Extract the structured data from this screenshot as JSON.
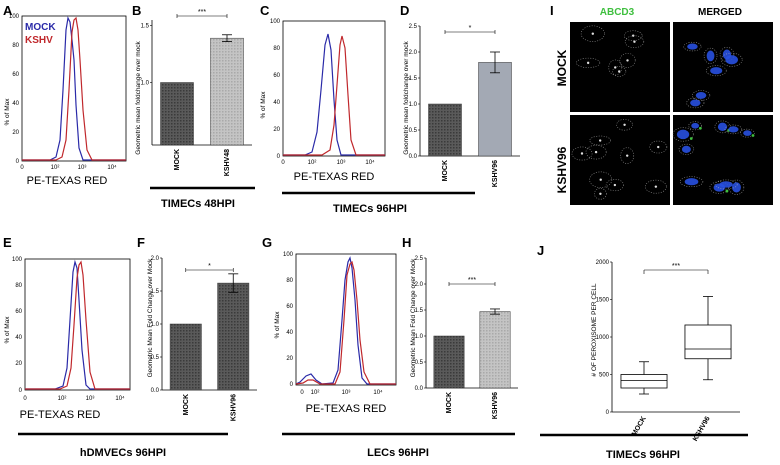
{
  "panels": [
    {
      "id": "A",
      "type": "histogram",
      "ylabel": "% of Max",
      "xlabel": "PE-TEXAS RED",
      "yticks": [
        "0",
        "20",
        "40",
        "60",
        "80",
        "100"
      ],
      "xticks": [
        "0",
        "10²",
        "10³",
        "10⁴"
      ],
      "legend": [
        {
          "name": "MOCK",
          "color": "#2a2aa8"
        },
        {
          "name": "KSHV",
          "color": "#c0282c"
        }
      ],
      "caption": ""
    },
    {
      "id": "B",
      "type": "bar",
      "ylabel": "Geometric mean foldchange over mock",
      "yticks": [
        "1.0",
        "1.5"
      ],
      "categories": [
        "MOCK",
        "KSHV48"
      ],
      "values": [
        1.0,
        1.39
      ],
      "errors": [
        0,
        0.03
      ],
      "ylim": [
        0.45,
        1.55
      ],
      "significance": "***",
      "caption": "TIMECs  48HPI"
    },
    {
      "id": "C",
      "type": "histogram",
      "ylabel": "% of Max",
      "xlabel": "PE-TEXAS RED",
      "yticks": [
        "0",
        "20",
        "40",
        "60",
        "80",
        "100"
      ],
      "xticks": [
        "0",
        "10²",
        "10³",
        "10⁴"
      ],
      "caption": ""
    },
    {
      "id": "D",
      "type": "bar",
      "ylabel": "Geometric mean foldchange over mock",
      "yticks": [
        "0.0",
        "0.5",
        "1.0",
        "1.5",
        "2.0",
        "2.5"
      ],
      "categories": [
        "MOCK",
        "KSHV96"
      ],
      "values": [
        1.0,
        1.8
      ],
      "errors": [
        0,
        0.2
      ],
      "ylim": [
        0,
        2.5
      ],
      "significance": "*",
      "caption": "TIMECs 96HPI"
    },
    {
      "id": "E",
      "type": "histogram",
      "ylabel": "% of Max",
      "xlabel": "PE-TEXAS RED",
      "yticks": [
        "0",
        "20",
        "40",
        "60",
        "80",
        "100"
      ],
      "xticks": [
        "0",
        "10²",
        "10³",
        "10⁴"
      ],
      "caption": ""
    },
    {
      "id": "F",
      "type": "bar",
      "ylabel": "Geometric Mean Fold Change over Mock",
      "yticks": [
        "0.0",
        "0.5",
        "1.0",
        "1.5",
        "2.0"
      ],
      "categories": [
        "MOCK",
        "KSHV96"
      ],
      "values": [
        1.0,
        1.62
      ],
      "errors": [
        0,
        0.14
      ],
      "ylim": [
        0,
        2.0
      ],
      "significance": "*",
      "caption": "hDMVECs 96HPI"
    },
    {
      "id": "G",
      "type": "histogram",
      "ylabel": "% of Max",
      "xlabel": "PE-TEXAS RED",
      "yticks": [
        "0",
        "20",
        "40",
        "60",
        "80",
        "100"
      ],
      "xticks": [
        "0",
        "10²",
        "10³",
        "10⁴"
      ],
      "caption": ""
    },
    {
      "id": "H",
      "type": "bar",
      "ylabel": "Geometric Mean Fold Change over Mock",
      "yticks": [
        "0.0",
        "0.5",
        "1.0",
        "1.5",
        "2.0",
        "2.5"
      ],
      "categories": [
        "MOCK",
        "KSHV96"
      ],
      "values": [
        1.0,
        1.47
      ],
      "errors": [
        0,
        0.05
      ],
      "ylim": [
        0,
        2.5
      ],
      "significance": "***",
      "caption": "LECs 96HPI"
    },
    {
      "id": "I",
      "type": "micrograph",
      "columns": [
        "ABCD3",
        "MERGED"
      ],
      "column_colors": [
        "#3fbf3f",
        "#000000"
      ],
      "rows": [
        "MOCK",
        "KSHV96"
      ]
    },
    {
      "id": "J",
      "type": "boxplot",
      "ylabel": "# OF PEROXISOME PER CELL",
      "yticks": [
        "0",
        "500",
        "1000",
        "1500",
        "2000"
      ],
      "ylim": [
        0,
        2000
      ],
      "categories": [
        "MOCK",
        "KSHV96"
      ],
      "boxes": [
        {
          "min": 240,
          "q1": 320,
          "median": 420,
          "q3": 500,
          "max": 670
        },
        {
          "min": 430,
          "q1": 710,
          "median": 840,
          "q3": 1160,
          "max": 1540
        }
      ],
      "significance": "***",
      "caption": "TIMECs 96HPI"
    }
  ],
  "colors": {
    "mock": "#2a2aa8",
    "kshv": "#c0282c"
  }
}
